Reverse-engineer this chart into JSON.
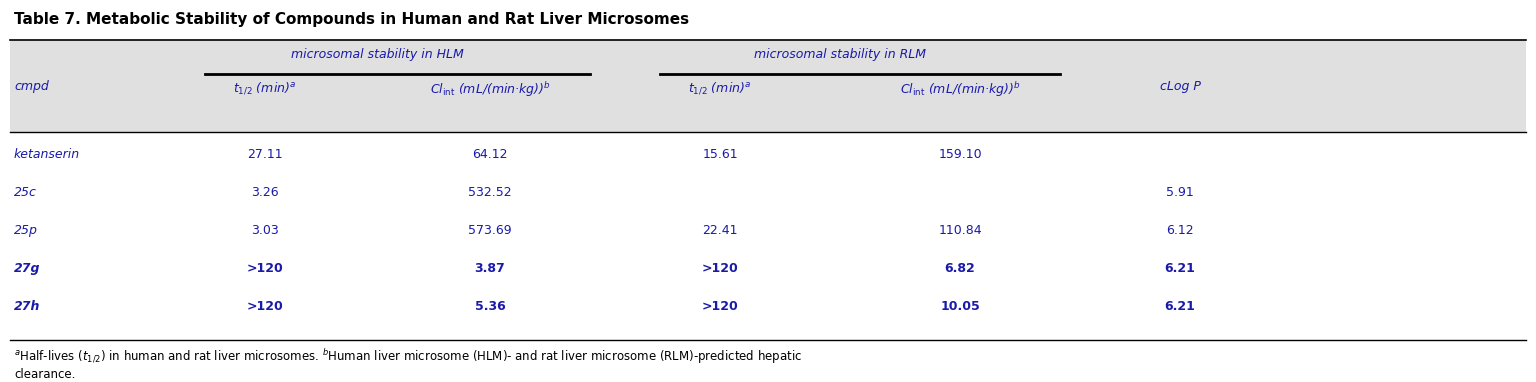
{
  "title": "Table 7. Metabolic Stability of Compounds in Human and Rat Liver Microsomes",
  "group_hlm": "microsomal stability in HLM",
  "group_rlm": "microsomal stability in RLM",
  "rows": [
    [
      "ketanserin",
      "27.11",
      "64.12",
      "15.61",
      "159.10",
      ""
    ],
    [
      "25c",
      "3.26",
      "532.52",
      "",
      "",
      "5.91"
    ],
    [
      "25p",
      "3.03",
      "573.69",
      "22.41",
      "110.84",
      "6.12"
    ],
    [
      "27g",
      ">120",
      "3.87",
      ">120",
      "6.82",
      "6.21"
    ],
    [
      "27h",
      ">120",
      "5.36",
      ">120",
      "10.05",
      "6.21"
    ]
  ],
  "bold_compounds": [
    "27g",
    "27h"
  ],
  "italic_compounds": [
    "ketanserin",
    "25c",
    "25p"
  ],
  "bg_header_color": "#e0e0e0",
  "text_color": "#000000",
  "blue_color": "#1a1aaa",
  "footnote1": "$^{a}$Half-lives ($t_{1/2}$) in human and rat liver microsomes. $^{b}$Human liver microsome (HLM)- and rat liver microsome (RLM)-predicted hepatic",
  "footnote2": "clearance."
}
